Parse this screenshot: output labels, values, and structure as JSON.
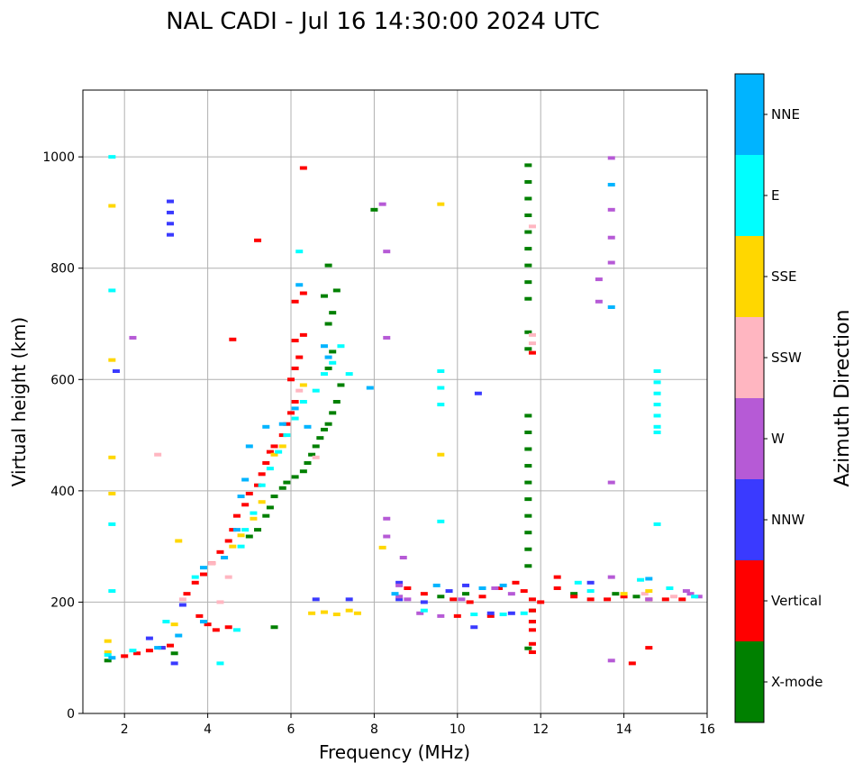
{
  "chart_data": {
    "type": "scatter",
    "title": "NAL CADI - Jul 16 14:30:00 2024 UTC",
    "xlabel": "Frequency (MHz)",
    "ylabel": "Virtual height (km)",
    "xlim": [
      1,
      16
    ],
    "ylim": [
      0,
      1120
    ],
    "xticks": [
      2,
      4,
      6,
      8,
      10,
      12,
      14,
      16
    ],
    "yticks": [
      0,
      200,
      400,
      600,
      800,
      1000
    ],
    "grid": true,
    "colorbar": {
      "title": "Azimuth Direction",
      "categories": [
        {
          "label": "X-mode",
          "color": "#008000"
        },
        {
          "label": "Vertical",
          "color": "#ff0000"
        },
        {
          "label": "NNW",
          "color": "#3a3aff"
        },
        {
          "label": "W",
          "color": "#b65ad6"
        },
        {
          "label": "SSW",
          "color": "#ffb6c1"
        },
        {
          "label": "SSE",
          "color": "#ffd700"
        },
        {
          "label": "E",
          "color": "#00ffff"
        },
        {
          "label": "NNE",
          "color": "#00b4ff"
        }
      ]
    },
    "series": [
      {
        "name": "X-mode",
        "points": [
          [
            1.6,
            95
          ],
          [
            3.2,
            108
          ],
          [
            5.0,
            318
          ],
          [
            5.2,
            330
          ],
          [
            5.4,
            355
          ],
          [
            5.5,
            370
          ],
          [
            5.6,
            390
          ],
          [
            5.8,
            405
          ],
          [
            5.9,
            415
          ],
          [
            6.1,
            425
          ],
          [
            6.3,
            435
          ],
          [
            6.4,
            450
          ],
          [
            6.5,
            465
          ],
          [
            6.6,
            480
          ],
          [
            6.7,
            495
          ],
          [
            6.8,
            510
          ],
          [
            6.9,
            520
          ],
          [
            7.0,
            540
          ],
          [
            7.1,
            560
          ],
          [
            7.2,
            590
          ],
          [
            6.9,
            620
          ],
          [
            7.0,
            650
          ],
          [
            6.9,
            700
          ],
          [
            7.0,
            720
          ],
          [
            6.8,
            750
          ],
          [
            7.1,
            760
          ],
          [
            6.9,
            805
          ],
          [
            5.6,
            155
          ],
          [
            8.0,
            905
          ],
          [
            11.7,
            117
          ],
          [
            11.7,
            265
          ],
          [
            11.7,
            295
          ],
          [
            11.7,
            325
          ],
          [
            11.7,
            355
          ],
          [
            11.7,
            385
          ],
          [
            11.7,
            415
          ],
          [
            11.7,
            445
          ],
          [
            11.7,
            475
          ],
          [
            11.7,
            505
          ],
          [
            11.7,
            535
          ],
          [
            11.7,
            655
          ],
          [
            11.7,
            685
          ],
          [
            11.7,
            745
          ],
          [
            11.7,
            775
          ],
          [
            11.7,
            805
          ],
          [
            11.7,
            835
          ],
          [
            11.7,
            865
          ],
          [
            11.7,
            895
          ],
          [
            11.7,
            925
          ],
          [
            11.7,
            955
          ],
          [
            11.7,
            985
          ],
          [
            11.8,
            165
          ],
          [
            11.8,
            185
          ],
          [
            9.6,
            210
          ],
          [
            10.2,
            215
          ],
          [
            12.8,
            215
          ],
          [
            13.8,
            215
          ],
          [
            14.3,
            210
          ]
        ]
      },
      {
        "name": "Vertical",
        "points": [
          [
            2.0,
            103
          ],
          [
            2.3,
            108
          ],
          [
            2.6,
            113
          ],
          [
            2.9,
            118
          ],
          [
            3.1,
            122
          ],
          [
            3.5,
            215
          ],
          [
            3.7,
            235
          ],
          [
            3.9,
            250
          ],
          [
            4.1,
            270
          ],
          [
            4.3,
            290
          ],
          [
            4.5,
            310
          ],
          [
            4.6,
            330
          ],
          [
            4.7,
            355
          ],
          [
            4.9,
            375
          ],
          [
            5.0,
            395
          ],
          [
            5.2,
            410
          ],
          [
            5.3,
            430
          ],
          [
            5.4,
            450
          ],
          [
            5.5,
            470
          ],
          [
            5.6,
            480
          ],
          [
            5.8,
            500
          ],
          [
            5.9,
            520
          ],
          [
            6.0,
            540
          ],
          [
            6.1,
            560
          ],
          [
            6.0,
            600
          ],
          [
            6.1,
            620
          ],
          [
            6.2,
            640
          ],
          [
            6.1,
            670
          ],
          [
            6.3,
            680
          ],
          [
            6.1,
            740
          ],
          [
            6.3,
            755
          ],
          [
            6.3,
            980
          ],
          [
            5.2,
            850
          ],
          [
            4.6,
            672
          ],
          [
            3.8,
            175
          ],
          [
            4.0,
            160
          ],
          [
            4.2,
            150
          ],
          [
            4.5,
            155
          ],
          [
            8.8,
            225
          ],
          [
            9.2,
            215
          ],
          [
            9.9,
            205
          ],
          [
            10.3,
            200
          ],
          [
            10.6,
            210
          ],
          [
            11.0,
            225
          ],
          [
            11.4,
            235
          ],
          [
            11.6,
            220
          ],
          [
            11.8,
            205
          ],
          [
            11.8,
            185
          ],
          [
            11.8,
            165
          ],
          [
            11.8,
            150
          ],
          [
            11.8,
            125
          ],
          [
            11.8,
            110
          ],
          [
            12.4,
            245
          ],
          [
            12.4,
            225
          ],
          [
            12.8,
            210
          ],
          [
            13.2,
            205
          ],
          [
            13.6,
            205
          ],
          [
            14.0,
            210
          ],
          [
            14.6,
            205
          ],
          [
            15.0,
            205
          ],
          [
            15.4,
            205
          ],
          [
            14.6,
            118
          ],
          [
            14.2,
            90
          ],
          [
            11.8,
            648
          ],
          [
            10.0,
            175
          ],
          [
            10.8,
            175
          ],
          [
            12.0,
            200
          ]
        ]
      },
      {
        "name": "NNW",
        "points": [
          [
            3.1,
            860
          ],
          [
            3.1,
            880
          ],
          [
            3.1,
            900
          ],
          [
            3.1,
            920
          ],
          [
            1.8,
            615
          ],
          [
            8.6,
            235
          ],
          [
            8.6,
            205
          ],
          [
            9.2,
            200
          ],
          [
            9.8,
            220
          ],
          [
            10.2,
            230
          ],
          [
            10.5,
            575
          ],
          [
            10.8,
            180
          ],
          [
            11.3,
            180
          ],
          [
            10.4,
            155
          ],
          [
            6.6,
            205
          ],
          [
            7.4,
            205
          ],
          [
            2.6,
            135
          ],
          [
            2.9,
            118
          ],
          [
            3.2,
            90
          ],
          [
            3.4,
            195
          ],
          [
            13.2,
            235
          ]
        ]
      },
      {
        "name": "W",
        "points": [
          [
            8.6,
            230
          ],
          [
            8.6,
            210
          ],
          [
            8.8,
            205
          ],
          [
            9.1,
            180
          ],
          [
            9.6,
            175
          ],
          [
            8.3,
            350
          ],
          [
            8.3,
            318
          ],
          [
            8.7,
            280
          ],
          [
            8.2,
            915
          ],
          [
            8.3,
            830
          ],
          [
            8.3,
            675
          ],
          [
            10.1,
            205
          ],
          [
            10.9,
            225
          ],
          [
            11.3,
            215
          ],
          [
            13.7,
            998
          ],
          [
            13.7,
            905
          ],
          [
            13.7,
            855
          ],
          [
            13.7,
            810
          ],
          [
            13.7,
            245
          ],
          [
            13.7,
            95
          ],
          [
            13.7,
            415
          ],
          [
            13.4,
            780
          ],
          [
            13.4,
            740
          ],
          [
            15.6,
            215
          ],
          [
            15.8,
            210
          ],
          [
            15.5,
            220
          ],
          [
            2.2,
            675
          ],
          [
            14.6,
            205
          ]
        ]
      },
      {
        "name": "SSW",
        "points": [
          [
            11.8,
            875
          ],
          [
            11.8,
            680
          ],
          [
            11.8,
            665
          ],
          [
            4.1,
            270
          ],
          [
            4.5,
            245
          ],
          [
            4.3,
            200
          ],
          [
            3.4,
            205
          ],
          [
            2.8,
            465
          ],
          [
            14.5,
            215
          ],
          [
            15.2,
            210
          ],
          [
            6.6,
            460
          ],
          [
            6.2,
            580
          ]
        ]
      },
      {
        "name": "SSE",
        "points": [
          [
            1.6,
            130
          ],
          [
            1.6,
            110
          ],
          [
            1.7,
            912
          ],
          [
            1.7,
            635
          ],
          [
            1.7,
            460
          ],
          [
            1.7,
            395
          ],
          [
            4.6,
            300
          ],
          [
            4.8,
            320
          ],
          [
            5.1,
            350
          ],
          [
            5.3,
            380
          ],
          [
            5.6,
            465
          ],
          [
            5.8,
            480
          ],
          [
            6.3,
            590
          ],
          [
            6.5,
            180
          ],
          [
            6.8,
            182
          ],
          [
            7.1,
            178
          ],
          [
            7.4,
            185
          ],
          [
            7.6,
            180
          ],
          [
            8.2,
            298
          ],
          [
            9.6,
            465
          ],
          [
            9.6,
            915
          ],
          [
            14.0,
            215
          ],
          [
            14.6,
            220
          ],
          [
            3.2,
            160
          ],
          [
            3.3,
            310
          ]
        ]
      },
      {
        "name": "E",
        "points": [
          [
            1.6,
            105
          ],
          [
            1.7,
            1000
          ],
          [
            1.7,
            760
          ],
          [
            1.7,
            340
          ],
          [
            1.7,
            220
          ],
          [
            4.8,
            300
          ],
          [
            4.9,
            330
          ],
          [
            5.1,
            360
          ],
          [
            5.3,
            410
          ],
          [
            5.5,
            440
          ],
          [
            5.7,
            470
          ],
          [
            5.9,
            500
          ],
          [
            6.1,
            530
          ],
          [
            6.3,
            560
          ],
          [
            6.6,
            580
          ],
          [
            6.8,
            610
          ],
          [
            7.0,
            630
          ],
          [
            7.2,
            660
          ],
          [
            7.4,
            610
          ],
          [
            9.6,
            615
          ],
          [
            9.6,
            585
          ],
          [
            9.6,
            555
          ],
          [
            9.6,
            345
          ],
          [
            9.2,
            185
          ],
          [
            10.4,
            178
          ],
          [
            11.1,
            178
          ],
          [
            11.6,
            180
          ],
          [
            12.9,
            235
          ],
          [
            13.2,
            220
          ],
          [
            14.4,
            240
          ],
          [
            14.8,
            615
          ],
          [
            14.8,
            595
          ],
          [
            14.8,
            575
          ],
          [
            14.8,
            555
          ],
          [
            14.8,
            535
          ],
          [
            14.8,
            515
          ],
          [
            14.8,
            505
          ],
          [
            14.8,
            340
          ],
          [
            15.1,
            225
          ],
          [
            15.7,
            210
          ],
          [
            6.2,
            830
          ],
          [
            4.3,
            90
          ],
          [
            4.7,
            150
          ],
          [
            3.7,
            245
          ],
          [
            3.0,
            165
          ],
          [
            2.2,
            113
          ]
        ]
      },
      {
        "name": "NNE",
        "points": [
          [
            1.7,
            100
          ],
          [
            3.9,
            262
          ],
          [
            4.4,
            280
          ],
          [
            4.7,
            330
          ],
          [
            4.8,
            390
          ],
          [
            4.9,
            420
          ],
          [
            5.0,
            480
          ],
          [
            5.4,
            515
          ],
          [
            5.8,
            520
          ],
          [
            6.1,
            548
          ],
          [
            6.4,
            515
          ],
          [
            6.9,
            640
          ],
          [
            6.2,
            770
          ],
          [
            6.8,
            660
          ],
          [
            8.5,
            215
          ],
          [
            9.5,
            230
          ],
          [
            10.6,
            225
          ],
          [
            11.1,
            230
          ],
          [
            13.7,
            730
          ],
          [
            13.7,
            950
          ],
          [
            14.6,
            242
          ],
          [
            7.9,
            585
          ],
          [
            2.8,
            118
          ],
          [
            3.3,
            140
          ],
          [
            3.9,
            165
          ]
        ]
      }
    ]
  }
}
